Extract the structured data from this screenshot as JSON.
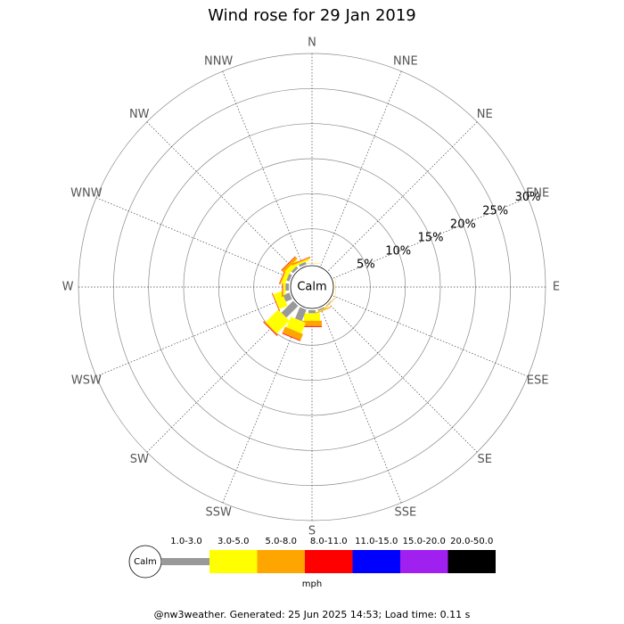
{
  "chart_data": {
    "type": "windrose",
    "title": "Wind rose for 29 Jan 2019",
    "directions": [
      "N",
      "NNE",
      "NE",
      "ENE",
      "E",
      "ESE",
      "SE",
      "SSE",
      "S",
      "SSW",
      "SW",
      "WSW",
      "W",
      "WNW",
      "NW",
      "NNW"
    ],
    "calm_label": "Calm",
    "unit": "mph",
    "footer": "@nw3weather. Generated: 25 Jun 2025 14:53; Load time: 0.11 s",
    "rlim": [
      0,
      30
    ],
    "rticks": [
      {
        "value": 5,
        "label": "5%"
      },
      {
        "value": 10,
        "label": "10%"
      },
      {
        "value": 15,
        "label": "15%"
      },
      {
        "value": 20,
        "label": "20%"
      },
      {
        "value": 25,
        "label": "25%"
      },
      {
        "value": 30,
        "label": "30%"
      }
    ],
    "grid": true,
    "series": [
      {
        "name": "1.0-3.0",
        "color": "#999999",
        "values": [
          0.02,
          0,
          0,
          0,
          0,
          0,
          0.05,
          0.2,
          0.43,
          1.76,
          2.37,
          0.94,
          0.48,
          0.43,
          0.36,
          0.36
        ]
      },
      {
        "name": "3.0-5.0",
        "color": "#ffff00",
        "values": [
          0.03,
          0,
          0,
          0,
          0.04,
          0,
          0.05,
          0.1,
          1.07,
          1.63,
          2.54,
          1.27,
          0.31,
          0.56,
          0.66,
          0.25
        ]
      },
      {
        "name": "5.0-8.0",
        "color": "#ffa500",
        "values": [
          0.02,
          0,
          0,
          0,
          0.02,
          0,
          0.05,
          0.1,
          0.76,
          0.97,
          0.15,
          0.05,
          0.08,
          0.18,
          0.41,
          0.15
        ]
      },
      {
        "name": "8.0-11.0",
        "color": "#ff0000",
        "values": [
          0,
          0,
          0,
          0,
          0,
          0,
          0.02,
          0.02,
          0.13,
          0.1,
          0.1,
          0.07,
          0.08,
          0.05,
          0.08,
          0.05
        ]
      },
      {
        "name": "11.0-15.0",
        "color": "#0000ff",
        "values": [
          0,
          0,
          0,
          0,
          0,
          0,
          0,
          0,
          0,
          0,
          0,
          0,
          0,
          0,
          0,
          0
        ]
      },
      {
        "name": "15.0-20.0",
        "color": "#a020f0",
        "values": [
          0,
          0,
          0,
          0,
          0,
          0,
          0,
          0,
          0,
          0,
          0,
          0,
          0,
          0,
          0,
          0
        ]
      },
      {
        "name": "20.0-50.0",
        "color": "#000000",
        "values": [
          0,
          0,
          0,
          0,
          0,
          0,
          0,
          0,
          0,
          0,
          0,
          0,
          0,
          0,
          0,
          0
        ]
      }
    ]
  }
}
